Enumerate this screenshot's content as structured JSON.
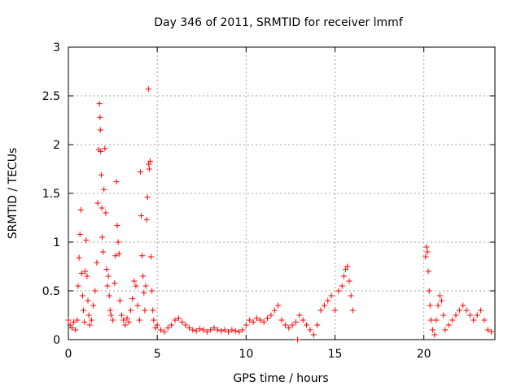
{
  "chart_data": {
    "type": "scatter",
    "title": "Day 346 of 2011, SRMTID for receiver lmmf",
    "xlabel": "GPS time / hours",
    "ylabel": "SRMTID / TECUs",
    "xlim": [
      0,
      24
    ],
    "ylim": [
      0,
      3
    ],
    "xticks": [
      0,
      5,
      10,
      15,
      20
    ],
    "yticks": [
      0,
      0.5,
      1,
      1.5,
      2,
      2.5,
      3
    ],
    "ytick_labels": [
      "0",
      "0.5",
      "1",
      "1.5",
      "2",
      "2.5",
      "3"
    ],
    "grid": true,
    "marker": "+",
    "color": "#ff0000",
    "series": [
      {
        "values_note": "",
        "points": [
          [
            0.0,
            0.2
          ],
          [
            0.1,
            0.15
          ],
          [
            0.2,
            0.12
          ],
          [
            0.3,
            0.18
          ],
          [
            0.4,
            0.1
          ],
          [
            0.5,
            0.2
          ],
          [
            0.55,
            0.55
          ],
          [
            0.6,
            0.84
          ],
          [
            0.65,
            1.08
          ],
          [
            0.7,
            1.33
          ],
          [
            0.75,
            0.68
          ],
          [
            0.8,
            0.45
          ],
          [
            0.85,
            0.3
          ],
          [
            0.9,
            0.18
          ],
          [
            0.95,
            0.7
          ],
          [
            1.0,
            1.02
          ],
          [
            1.05,
            0.65
          ],
          [
            1.1,
            0.4
          ],
          [
            1.15,
            0.25
          ],
          [
            1.2,
            0.15
          ],
          [
            1.3,
            0.2
          ],
          [
            1.4,
            0.35
          ],
          [
            1.5,
            0.5
          ],
          [
            1.6,
            0.79
          ],
          [
            1.65,
            1.4
          ],
          [
            1.7,
            1.95
          ],
          [
            1.75,
            2.42
          ],
          [
            1.78,
            2.28
          ],
          [
            1.8,
            2.15
          ],
          [
            1.82,
            1.93
          ],
          [
            1.85,
            1.69
          ],
          [
            1.88,
            1.35
          ],
          [
            1.9,
            1.05
          ],
          [
            1.95,
            0.9
          ],
          [
            2.0,
            1.54
          ],
          [
            2.05,
            1.96
          ],
          [
            2.1,
            1.3
          ],
          [
            2.15,
            0.72
          ],
          [
            2.2,
            0.55
          ],
          [
            2.25,
            0.65
          ],
          [
            2.3,
            0.45
          ],
          [
            2.35,
            0.3
          ],
          [
            2.4,
            0.25
          ],
          [
            2.5,
            0.2
          ],
          [
            2.6,
            0.58
          ],
          [
            2.65,
            0.86
          ],
          [
            2.7,
            1.62
          ],
          [
            2.75,
            1.17
          ],
          [
            2.8,
            1.0
          ],
          [
            2.85,
            0.88
          ],
          [
            2.9,
            0.4
          ],
          [
            3.0,
            0.25
          ],
          [
            3.1,
            0.2
          ],
          [
            3.2,
            0.15
          ],
          [
            3.3,
            0.22
          ],
          [
            3.4,
            0.18
          ],
          [
            3.5,
            0.3
          ],
          [
            3.6,
            0.42
          ],
          [
            3.7,
            0.6
          ],
          [
            3.8,
            0.55
          ],
          [
            3.9,
            0.35
          ],
          [
            4.0,
            0.2
          ],
          [
            4.05,
            1.72
          ],
          [
            4.1,
            1.27
          ],
          [
            4.15,
            0.86
          ],
          [
            4.2,
            0.65
          ],
          [
            4.25,
            0.48
          ],
          [
            4.3,
            0.3
          ],
          [
            4.35,
            0.55
          ],
          [
            4.4,
            1.23
          ],
          [
            4.45,
            1.46
          ],
          [
            4.5,
            2.57
          ],
          [
            4.52,
            1.8
          ],
          [
            4.55,
            1.75
          ],
          [
            4.6,
            1.83
          ],
          [
            4.65,
            0.85
          ],
          [
            4.7,
            0.5
          ],
          [
            4.75,
            0.3
          ],
          [
            4.8,
            0.2
          ],
          [
            4.9,
            0.12
          ],
          [
            5.0,
            0.15
          ],
          [
            5.2,
            0.1
          ],
          [
            5.4,
            0.08
          ],
          [
            5.6,
            0.12
          ],
          [
            5.8,
            0.15
          ],
          [
            6.0,
            0.2
          ],
          [
            6.2,
            0.22
          ],
          [
            6.4,
            0.18
          ],
          [
            6.6,
            0.15
          ],
          [
            6.8,
            0.12
          ],
          [
            7.0,
            0.1
          ],
          [
            7.2,
            0.09
          ],
          [
            7.4,
            0.11
          ],
          [
            7.6,
            0.1
          ],
          [
            7.8,
            0.08
          ],
          [
            8.0,
            0.1
          ],
          [
            8.2,
            0.12
          ],
          [
            8.4,
            0.1
          ],
          [
            8.6,
            0.09
          ],
          [
            8.8,
            0.1
          ],
          [
            9.0,
            0.08
          ],
          [
            9.2,
            0.1
          ],
          [
            9.4,
            0.09
          ],
          [
            9.6,
            0.08
          ],
          [
            9.8,
            0.1
          ],
          [
            10.0,
            0.15
          ],
          [
            10.2,
            0.2
          ],
          [
            10.4,
            0.18
          ],
          [
            10.6,
            0.22
          ],
          [
            10.8,
            0.2
          ],
          [
            11.0,
            0.18
          ],
          [
            11.2,
            0.22
          ],
          [
            11.4,
            0.25
          ],
          [
            11.6,
            0.3
          ],
          [
            11.8,
            0.35
          ],
          [
            12.0,
            0.2
          ],
          [
            12.2,
            0.15
          ],
          [
            12.4,
            0.12
          ],
          [
            12.6,
            0.15
          ],
          [
            12.8,
            0.18
          ],
          [
            12.9,
            0.0
          ],
          [
            13.0,
            0.25
          ],
          [
            13.2,
            0.2
          ],
          [
            13.4,
            0.15
          ],
          [
            13.6,
            0.1
          ],
          [
            13.8,
            0.05
          ],
          [
            14.0,
            0.15
          ],
          [
            14.2,
            0.3
          ],
          [
            14.4,
            0.35
          ],
          [
            14.6,
            0.4
          ],
          [
            14.8,
            0.45
          ],
          [
            15.0,
            0.3
          ],
          [
            15.2,
            0.5
          ],
          [
            15.4,
            0.55
          ],
          [
            15.5,
            0.65
          ],
          [
            15.6,
            0.72
          ],
          [
            15.7,
            0.75
          ],
          [
            15.8,
            0.6
          ],
          [
            15.9,
            0.45
          ],
          [
            16.0,
            0.3
          ],
          [
            20.1,
            0.85
          ],
          [
            20.15,
            0.95
          ],
          [
            20.2,
            0.9
          ],
          [
            20.25,
            0.7
          ],
          [
            20.3,
            0.5
          ],
          [
            20.35,
            0.35
          ],
          [
            20.4,
            0.2
          ],
          [
            20.5,
            0.1
          ],
          [
            20.6,
            0.05
          ],
          [
            20.7,
            0.2
          ],
          [
            20.8,
            0.35
          ],
          [
            20.9,
            0.45
          ],
          [
            21.0,
            0.4
          ],
          [
            21.1,
            0.25
          ],
          [
            21.2,
            0.1
          ],
          [
            21.4,
            0.15
          ],
          [
            21.6,
            0.2
          ],
          [
            21.8,
            0.25
          ],
          [
            22.0,
            0.3
          ],
          [
            22.2,
            0.35
          ],
          [
            22.4,
            0.3
          ],
          [
            22.6,
            0.25
          ],
          [
            22.8,
            0.2
          ],
          [
            23.0,
            0.25
          ],
          [
            23.2,
            0.3
          ],
          [
            23.4,
            0.2
          ],
          [
            23.6,
            0.1
          ],
          [
            23.8,
            0.08
          ]
        ]
      }
    ]
  }
}
